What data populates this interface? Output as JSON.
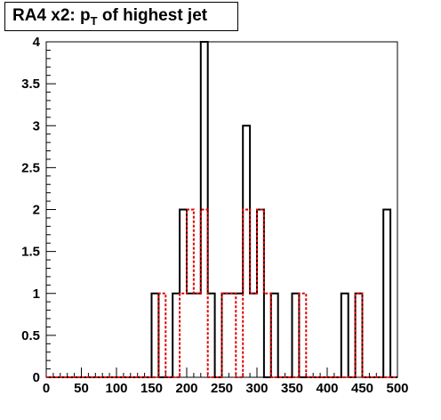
{
  "chart_data": {
    "type": "bar",
    "title": {
      "prefix": "RA4 x2: p",
      "subscript": "T",
      "suffix": " of highest jet"
    },
    "xlabel": "",
    "ylabel": "",
    "xlim": [
      0,
      500
    ],
    "ylim": [
      0,
      4
    ],
    "bin_width": 10,
    "x_ticks": [
      "0",
      "50",
      "100",
      "150",
      "200",
      "250",
      "300",
      "350",
      "400",
      "450",
      "500"
    ],
    "y_ticks": [
      "0",
      "0.5",
      "1",
      "1.5",
      "2",
      "2.5",
      "3",
      "3.5",
      "4"
    ],
    "grid": false,
    "legend": "none",
    "series": [
      {
        "color": "#000000",
        "style": "solid",
        "values": [
          0,
          0,
          0,
          0,
          0,
          0,
          0,
          0,
          0,
          0,
          0,
          0,
          0,
          0,
          0,
          1,
          0,
          0,
          1,
          2,
          1,
          1,
          4,
          1,
          0,
          1,
          1,
          1,
          3,
          1,
          2,
          0,
          1,
          0,
          0,
          1,
          0,
          0,
          0,
          0,
          0,
          0,
          1,
          0,
          1,
          0,
          0,
          0,
          2,
          0
        ]
      },
      {
        "color": "#dd0000",
        "style": "dotted",
        "values": [
          0,
          0,
          0,
          0,
          0,
          0,
          0,
          0,
          0,
          0,
          0,
          0,
          0,
          0,
          0,
          0,
          1,
          0,
          0,
          1,
          2,
          1,
          2,
          0,
          0,
          1,
          1,
          0,
          2,
          1,
          2,
          1,
          0,
          0,
          0,
          0,
          1,
          0,
          0,
          0,
          0,
          0,
          0,
          0,
          1,
          0,
          0,
          0,
          0,
          0
        ]
      }
    ]
  }
}
